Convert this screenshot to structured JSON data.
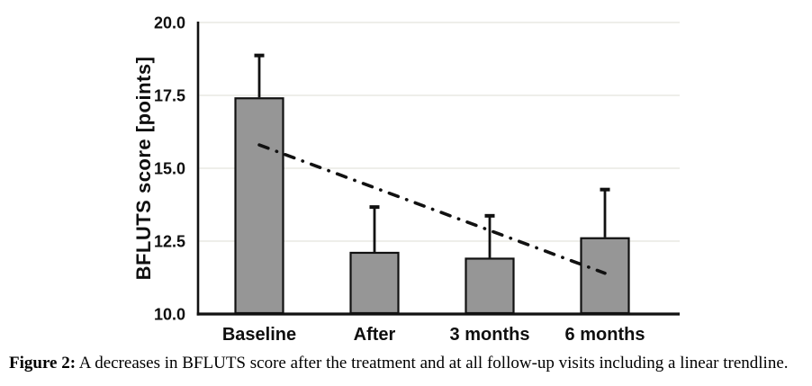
{
  "figure": {
    "caption_label": "Figure 2:",
    "caption_text": "A decreases in BFLUTS score after the treatment and at all follow-up visits including a linear trendline."
  },
  "chart_data": {
    "type": "bar",
    "title": "",
    "xlabel": "",
    "ylabel": "BFLUTS score [points]",
    "categories": [
      "Baseline",
      "After",
      "3 months",
      "6 months"
    ],
    "values": [
      17.4,
      12.1,
      11.9,
      12.6
    ],
    "error_upper": [
      18.9,
      13.7,
      13.4,
      14.3
    ],
    "trendline": {
      "style": "dash-dot",
      "start_value": 15.8,
      "end_value": 11.4,
      "start_category": "Baseline",
      "end_category": "6 months"
    },
    "ylim": [
      10.0,
      20.0
    ],
    "yticks": [
      "10.0",
      "12.5",
      "15.0",
      "17.5",
      "20.0"
    ],
    "grid": "horizontal",
    "legend": "none",
    "colors": {
      "bar_fill": "#969696",
      "bar_border": "#111111",
      "gridline": "#e8e8e4",
      "axis": "#111111",
      "trendline": "#111111",
      "background": "#ffffff",
      "text": "#0f0f0f"
    }
  }
}
